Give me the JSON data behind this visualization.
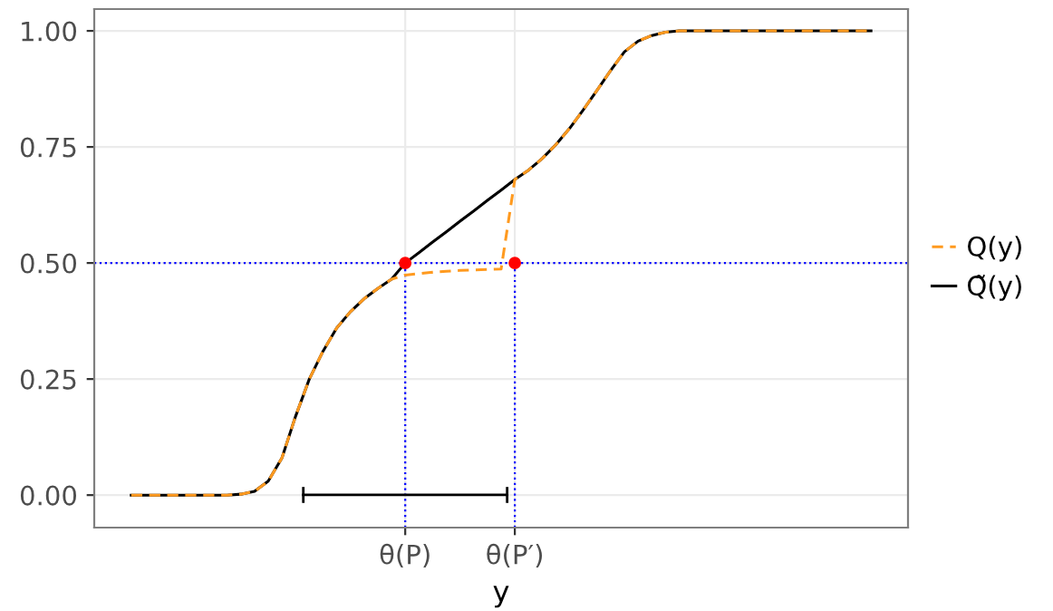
{
  "chart_data": {
    "type": "line",
    "xlabel": "y",
    "categories": [
      null,
      null,
      null,
      null,
      null,
      null,
      null,
      null,
      null,
      null,
      null,
      null,
      null,
      null,
      null,
      null,
      null,
      null,
      null,
      null,
      "θ(P)",
      null,
      null,
      null,
      null,
      null,
      null,
      null,
      "θ(P′)",
      null,
      null,
      null,
      null,
      null,
      null,
      null,
      null,
      null,
      null,
      null,
      null,
      null,
      null,
      null,
      null,
      null,
      null,
      null,
      null,
      null,
      null,
      null,
      null,
      null,
      null
    ],
    "ylim": [
      -0.07,
      1.047
    ],
    "yticks": [
      {
        "value": 0,
        "label": "0.00"
      },
      {
        "value": 0.25,
        "label": "0.25"
      },
      {
        "value": 0.5,
        "label": "0.50"
      },
      {
        "value": 0.75,
        "label": "0.75"
      },
      {
        "value": 1,
        "label": "1.00"
      }
    ],
    "grid": true,
    "legend": "right",
    "series": [
      {
        "name": "Q̃(y)",
        "color": "#000000",
        "line_style": "solid",
        "values": [
          0,
          0,
          0,
          0,
          0,
          0,
          0,
          0,
          0.002,
          0.008,
          0.03,
          0.08,
          0.17,
          0.25,
          0.31,
          0.36,
          0.395,
          0.423,
          0.445,
          0.465,
          0.5,
          0.522,
          0.545,
          0.567,
          0.59,
          0.612,
          0.635,
          0.657,
          0.68,
          0.7,
          0.725,
          0.755,
          0.79,
          0.83,
          0.872,
          0.915,
          0.955,
          0.978,
          0.99,
          0.997,
          1,
          1,
          1,
          1,
          1,
          1,
          1,
          1,
          1,
          1,
          1,
          1,
          1,
          1,
          1
        ]
      },
      {
        "name": "Q(y)",
        "color": "#ff9a1f",
        "line_style": "dashed",
        "values": [
          0,
          0,
          0,
          0,
          0,
          0,
          0,
          0,
          0.002,
          0.008,
          0.03,
          0.08,
          0.17,
          0.25,
          0.31,
          0.36,
          0.395,
          0.423,
          0.445,
          0.465,
          0.474,
          0.477,
          0.48,
          0.482,
          0.484,
          0.485,
          0.486,
          0.487,
          0.68,
          0.7,
          0.725,
          0.755,
          0.79,
          0.83,
          0.872,
          0.915,
          0.955,
          0.978,
          0.99,
          0.997,
          1,
          1,
          1,
          1,
          1,
          1,
          1,
          1,
          1,
          1,
          1,
          1,
          1,
          1,
          1
        ]
      },
      {
        "type": "scatter",
        "color": "#ff0000",
        "marker": "circle",
        "values": [
          null,
          null,
          null,
          null,
          null,
          null,
          null,
          null,
          null,
          null,
          null,
          null,
          null,
          null,
          null,
          null,
          null,
          null,
          null,
          null,
          0.5,
          null,
          null,
          null,
          null,
          null,
          null,
          null,
          0.5,
          null,
          null,
          null,
          null,
          null,
          null,
          null,
          null,
          null,
          null,
          null,
          null,
          null,
          null,
          null,
          null,
          null,
          null,
          null,
          null,
          null,
          null,
          null,
          null,
          null,
          null
        ]
      }
    ],
    "ref_lines": [
      {
        "axis": "y",
        "value": 0.5,
        "color": "#0000ff",
        "line_style": "dotted"
      },
      {
        "axis": "x",
        "value": "θ(P)",
        "color": "#0000ff",
        "line_style": "dotted"
      },
      {
        "axis": "x",
        "value": "θ(P′)",
        "color": "#0000ff",
        "line_style": "dotted"
      }
    ]
  }
}
